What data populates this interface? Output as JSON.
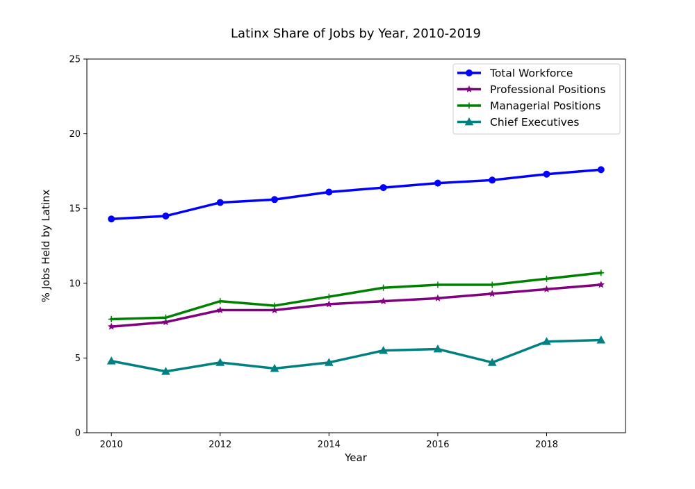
{
  "chart_data": {
    "type": "line",
    "title": "Latinx Share of Jobs by Year, 2010-2019",
    "xlabel": "Year",
    "ylabel": "% Jobs Held by Latinx",
    "x": [
      2010,
      2011,
      2012,
      2013,
      2014,
      2015,
      2016,
      2017,
      2018,
      2019
    ],
    "xlim": [
      2009.55,
      2019.45
    ],
    "ylim": [
      0,
      25
    ],
    "xticks": [
      2010,
      2012,
      2014,
      2016,
      2018
    ],
    "yticks": [
      0,
      5,
      10,
      15,
      20,
      25
    ],
    "grid": false,
    "legend_position": "top-right",
    "series": [
      {
        "name": "Total Workforce",
        "color": "#0000ff",
        "marker": "circle",
        "values": [
          14.3,
          14.5,
          15.4,
          15.6,
          16.1,
          16.4,
          16.7,
          16.9,
          17.3,
          17.6
        ]
      },
      {
        "name": "Professional Positions",
        "color": "#800080",
        "marker": "star",
        "values": [
          7.1,
          7.4,
          8.2,
          8.2,
          8.6,
          8.8,
          9.0,
          9.3,
          9.6,
          9.9
        ]
      },
      {
        "name": "Managerial Positions",
        "color": "#008000",
        "marker": "plus",
        "values": [
          7.6,
          7.7,
          8.8,
          8.5,
          9.1,
          9.7,
          9.9,
          9.9,
          10.3,
          10.7
        ]
      },
      {
        "name": "Chief Executives",
        "color": "#008080",
        "marker": "triangle",
        "values": [
          4.8,
          4.1,
          4.7,
          4.3,
          4.7,
          5.5,
          5.6,
          4.7,
          6.1,
          6.2
        ]
      }
    ]
  }
}
